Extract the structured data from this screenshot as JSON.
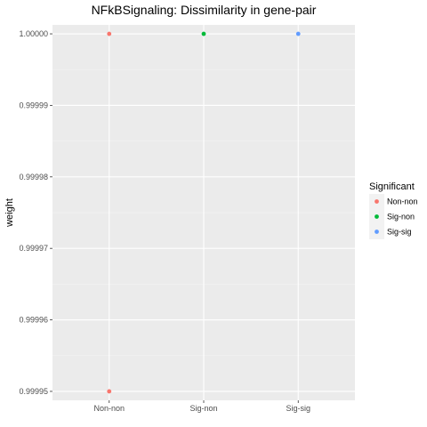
{
  "chart_data": {
    "type": "scatter",
    "title": "NFkBSignaling: Dissimilarity in gene-pair",
    "xlabel": "",
    "ylabel": "weight",
    "categories": [
      "Non-non",
      "Sig-non",
      "Sig-sig"
    ],
    "ylim": [
      0.99994875,
      1.00000125
    ],
    "y_ticks": [
      0.99995,
      0.99996,
      0.99997,
      0.99998,
      0.99999,
      1.0
    ],
    "y_tick_labels": [
      "0.99995",
      "0.99996",
      "0.99997",
      "0.99998",
      "0.99999",
      "1.00000"
    ],
    "grid": true,
    "background": "#ebebeb",
    "legend": {
      "title": "Significant",
      "placement": "right",
      "entries": [
        {
          "label": "Non-non",
          "color": "#f8766d"
        },
        {
          "label": "Sig-non",
          "color": "#00ba38"
        },
        {
          "label": "Sig-sig",
          "color": "#619cff"
        }
      ]
    },
    "series": [
      {
        "name": "Non-non",
        "color": "#f8766d",
        "points": [
          {
            "x": "Non-non",
            "y": 1.0
          },
          {
            "x": "Non-non",
            "y": 0.99995
          }
        ]
      },
      {
        "name": "Sig-non",
        "color": "#00ba38",
        "points": [
          {
            "x": "Sig-non",
            "y": 1.0
          }
        ]
      },
      {
        "name": "Sig-sig",
        "color": "#619cff",
        "points": [
          {
            "x": "Sig-sig",
            "y": 1.0
          }
        ]
      }
    ]
  }
}
